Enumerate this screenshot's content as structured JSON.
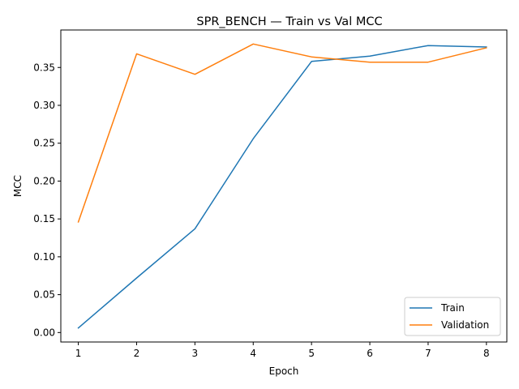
{
  "chart_data": {
    "type": "line",
    "title": "SPR_BENCH — Train vs Val MCC",
    "xlabel": "Epoch",
    "ylabel": "MCC",
    "x": [
      1,
      2,
      3,
      4,
      5,
      6,
      7,
      8
    ],
    "xlim": [
      0.7,
      8.35
    ],
    "ylim": [
      -0.0125,
      0.3995
    ],
    "xticks": [
      1,
      2,
      3,
      4,
      5,
      6,
      7,
      8
    ],
    "yticks": [
      0.0,
      0.05,
      0.1,
      0.15,
      0.2,
      0.25,
      0.3,
      0.35
    ],
    "ytick_labels": [
      "0.00",
      "0.05",
      "0.10",
      "0.15",
      "0.20",
      "0.25",
      "0.30",
      "0.35"
    ],
    "grid": false,
    "legend_position": "lower-right",
    "series": [
      {
        "name": "Train",
        "color": "#1f77b4",
        "values": [
          0.006,
          0.072,
          0.137,
          0.256,
          0.358,
          0.365,
          0.379,
          0.377
        ]
      },
      {
        "name": "Validation",
        "color": "#ff7f0e",
        "values": [
          0.146,
          0.368,
          0.341,
          0.381,
          0.364,
          0.357,
          0.357,
          0.376
        ]
      }
    ]
  }
}
